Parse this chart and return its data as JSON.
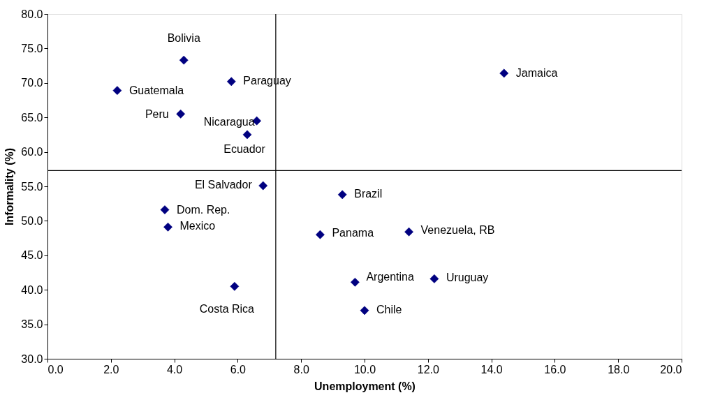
{
  "chart_data": {
    "type": "scatter",
    "xlabel": "Unemployment (%)",
    "ylabel": "Informality (%)",
    "x": [
      4.3,
      2.2,
      5.8,
      4.2,
      6.6,
      6.3,
      14.4,
      6.8,
      9.3,
      3.7,
      3.8,
      8.6,
      11.4,
      9.7,
      12.2,
      5.9,
      10.0
    ],
    "series": [
      {
        "color": "#000080",
        "values": [
          73.3,
          68.9,
          70.2,
          65.5,
          64.5,
          62.5,
          71.4,
          55.1,
          53.8,
          51.6,
          49.1,
          48.0,
          48.4,
          41.1,
          41.6,
          40.5,
          37.0
        ]
      }
    ],
    "annotations": [
      {
        "text": "Bolivia",
        "x": 4.3,
        "y": 73.3
      },
      {
        "text": "Guatemala",
        "x": 2.2,
        "y": 68.9
      },
      {
        "text": "Paraguay",
        "x": 5.8,
        "y": 70.2
      },
      {
        "text": "Peru",
        "x": 4.2,
        "y": 65.5
      },
      {
        "text": "Nicaragua",
        "x": 6.6,
        "y": 64.5
      },
      {
        "text": "Ecuador",
        "x": 6.3,
        "y": 62.5
      },
      {
        "text": "Jamaica",
        "x": 14.4,
        "y": 71.4
      },
      {
        "text": "El Salvador",
        "x": 6.8,
        "y": 55.1
      },
      {
        "text": "Brazil",
        "x": 9.3,
        "y": 53.8
      },
      {
        "text": "Dom. Rep.",
        "x": 3.7,
        "y": 51.6
      },
      {
        "text": "Mexico",
        "x": 3.8,
        "y": 49.1
      },
      {
        "text": "Panama",
        "x": 8.6,
        "y": 48.0
      },
      {
        "text": "Venezuela, RB",
        "x": 11.4,
        "y": 48.4
      },
      {
        "text": "Argentina",
        "x": 9.7,
        "y": 41.1
      },
      {
        "text": "Uruguay",
        "x": 12.2,
        "y": 41.6
      },
      {
        "text": "Costa Rica",
        "x": 5.9,
        "y": 40.5
      },
      {
        "text": "Chile",
        "x": 10.0,
        "y": 37.0
      }
    ],
    "xlim": [
      0,
      20
    ],
    "ylim": [
      30,
      80
    ],
    "xticks": [
      {
        "value": 0,
        "label": "0.0"
      },
      {
        "value": 2,
        "label": "2.0"
      },
      {
        "value": 4,
        "label": "4.0"
      },
      {
        "value": 6,
        "label": "6.0"
      },
      {
        "value": 8,
        "label": "8.0"
      },
      {
        "value": 10,
        "label": "10.0"
      },
      {
        "value": 12,
        "label": "12.0"
      },
      {
        "value": 14,
        "label": "14.0"
      },
      {
        "value": 16,
        "label": "16.0"
      },
      {
        "value": 18,
        "label": "18.0"
      },
      {
        "value": 20,
        "label": "20.0"
      }
    ],
    "yticks": [
      {
        "value": 30,
        "label": "30.0"
      },
      {
        "value": 35,
        "label": "35.0"
      },
      {
        "value": 40,
        "label": "40.0"
      },
      {
        "value": 45,
        "label": "45.0"
      },
      {
        "value": 50,
        "label": "50.0"
      },
      {
        "value": 55,
        "label": "55.0"
      },
      {
        "value": 60,
        "label": "60.0"
      },
      {
        "value": 65,
        "label": "65.0"
      },
      {
        "value": 70,
        "label": "70.0"
      },
      {
        "value": 75,
        "label": "75.0"
      },
      {
        "value": 80,
        "label": "80.0"
      }
    ],
    "ref_lines": [
      {
        "axis": "x",
        "value": 7.2,
        "color": "#000000"
      },
      {
        "axis": "y",
        "value": 57.3,
        "color": "#000000"
      }
    ],
    "marker": "diamond",
    "grid": false
  }
}
